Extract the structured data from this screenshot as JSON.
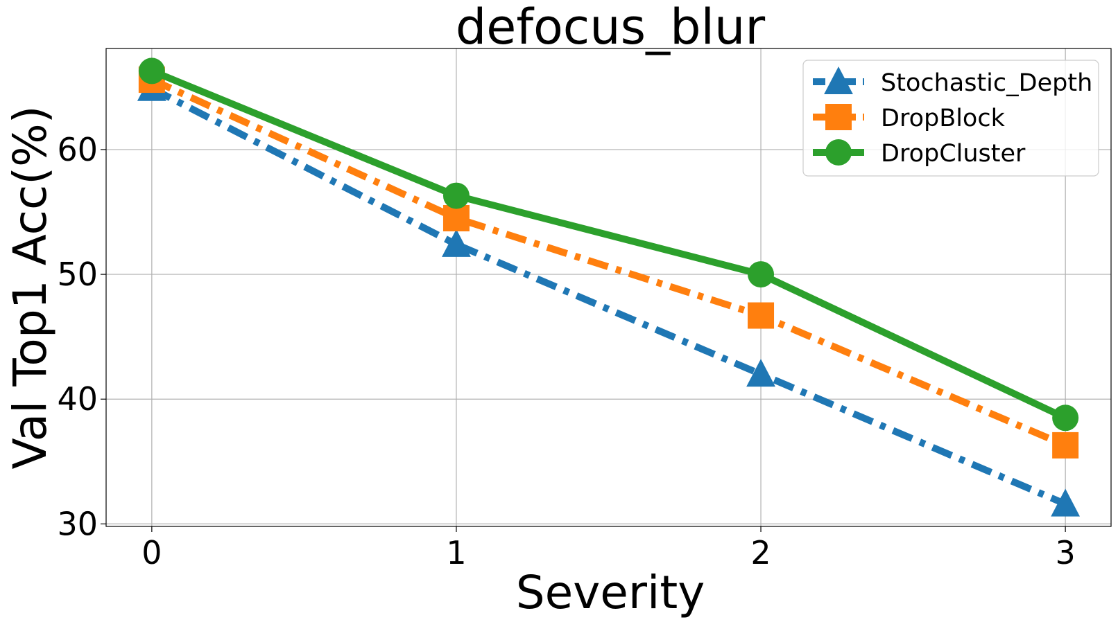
{
  "chart_data": {
    "type": "line",
    "title": "defocus_blur",
    "xlabel": "Severity",
    "ylabel": "Val Top1 Acc(%)",
    "x": [
      0,
      1,
      2,
      3
    ],
    "xticks": [
      "0",
      "1",
      "2",
      "3"
    ],
    "yticks": [
      "30",
      "40",
      "50",
      "60"
    ],
    "xlim": [
      -0.15,
      3.15
    ],
    "ylim": [
      29.8,
      68.1
    ],
    "grid": true,
    "legend_position": "top-right",
    "series": [
      {
        "name": "Stochastic_Depth",
        "values": [
          64.9,
          52.4,
          42.0,
          31.6
        ],
        "color": "#1f77b4",
        "marker": "triangle",
        "linestyle": "dashdot"
      },
      {
        "name": "DropBlock",
        "values": [
          65.6,
          54.5,
          46.7,
          36.3
        ],
        "color": "#ff7f0e",
        "marker": "square",
        "linestyle": "dashdot"
      },
      {
        "name": "DropCluster",
        "values": [
          66.3,
          56.3,
          50.0,
          38.5
        ],
        "color": "#2ca02c",
        "marker": "circle",
        "linestyle": "solid"
      }
    ]
  }
}
